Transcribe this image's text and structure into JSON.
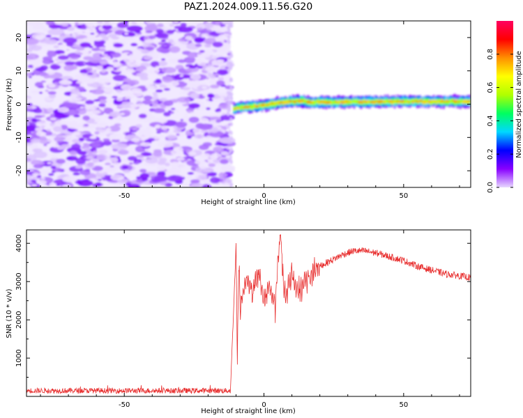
{
  "title": "PAZ1.2024.009.11.56.G20",
  "chart_data": [
    {
      "type": "heatmap",
      "xlabel": "Height of straight line (km)",
      "ylabel": "Frequency (Hz)",
      "xlim": [
        -85,
        74
      ],
      "ylim": [
        -25,
        25
      ],
      "xticks": [
        -50,
        0,
        50
      ],
      "yticks": [
        -20,
        -10,
        0,
        10,
        20
      ],
      "noise_region_x": [
        -85,
        -12
      ],
      "signal_ridge": {
        "x": [
          -11,
          -8,
          -5,
          -2,
          1,
          4,
          7,
          10,
          13,
          16,
          20,
          25,
          30,
          35,
          40,
          50,
          60,
          74
        ],
        "frequency": [
          -1.5,
          -0.8,
          -0.8,
          -0.5,
          -0.2,
          0.3,
          0.6,
          0.8,
          1.0,
          0.5,
          0.6,
          0.6,
          0.7,
          0.7,
          0.7,
          0.8,
          0.8,
          0.8
        ]
      },
      "colorbar": {
        "label": "Normalized spectral amplitude",
        "ticks": [
          0.0,
          0.2,
          0.4,
          0.6,
          0.8
        ],
        "range": [
          0,
          1
        ],
        "colors": [
          "#e8d8ff",
          "#8800ff",
          "#0000ff",
          "#00d8ff",
          "#00ff60",
          "#b0ff00",
          "#ffff00",
          "#ff9000",
          "#ff0000",
          "#ff0060"
        ]
      },
      "grid": false
    },
    {
      "type": "line",
      "xlabel": "Height of straight line (km)",
      "ylabel": "SNR (10 * v/v)",
      "xlim": [
        -85,
        74
      ],
      "ylim": [
        0,
        4350
      ],
      "xticks": [
        -50,
        0,
        50
      ],
      "yticks": [
        1000,
        2000,
        3000,
        4000
      ],
      "color": "#e83030",
      "series": [
        {
          "x": [
            -85,
            -70,
            -55,
            -40,
            -25,
            -12,
            -10,
            -9.5,
            -9,
            -8.5,
            -8,
            -6,
            -4,
            -2,
            0,
            2,
            4,
            5,
            6,
            7,
            8,
            10,
            12,
            15,
            18,
            20,
            24,
            28,
            32,
            36,
            40,
            45,
            50,
            55,
            60,
            65,
            70,
            74
          ],
          "y": [
            150,
            150,
            150,
            150,
            150,
            150,
            3900,
            1000,
            3700,
            2300,
            2600,
            3100,
            2700,
            3300,
            2500,
            2900,
            2300,
            3600,
            4300,
            2900,
            2600,
            3200,
            2700,
            3000,
            3300,
            3400,
            3550,
            3700,
            3800,
            3800,
            3750,
            3650,
            3550,
            3400,
            3300,
            3200,
            3150,
            3100
          ]
        }
      ],
      "grid": false
    }
  ]
}
